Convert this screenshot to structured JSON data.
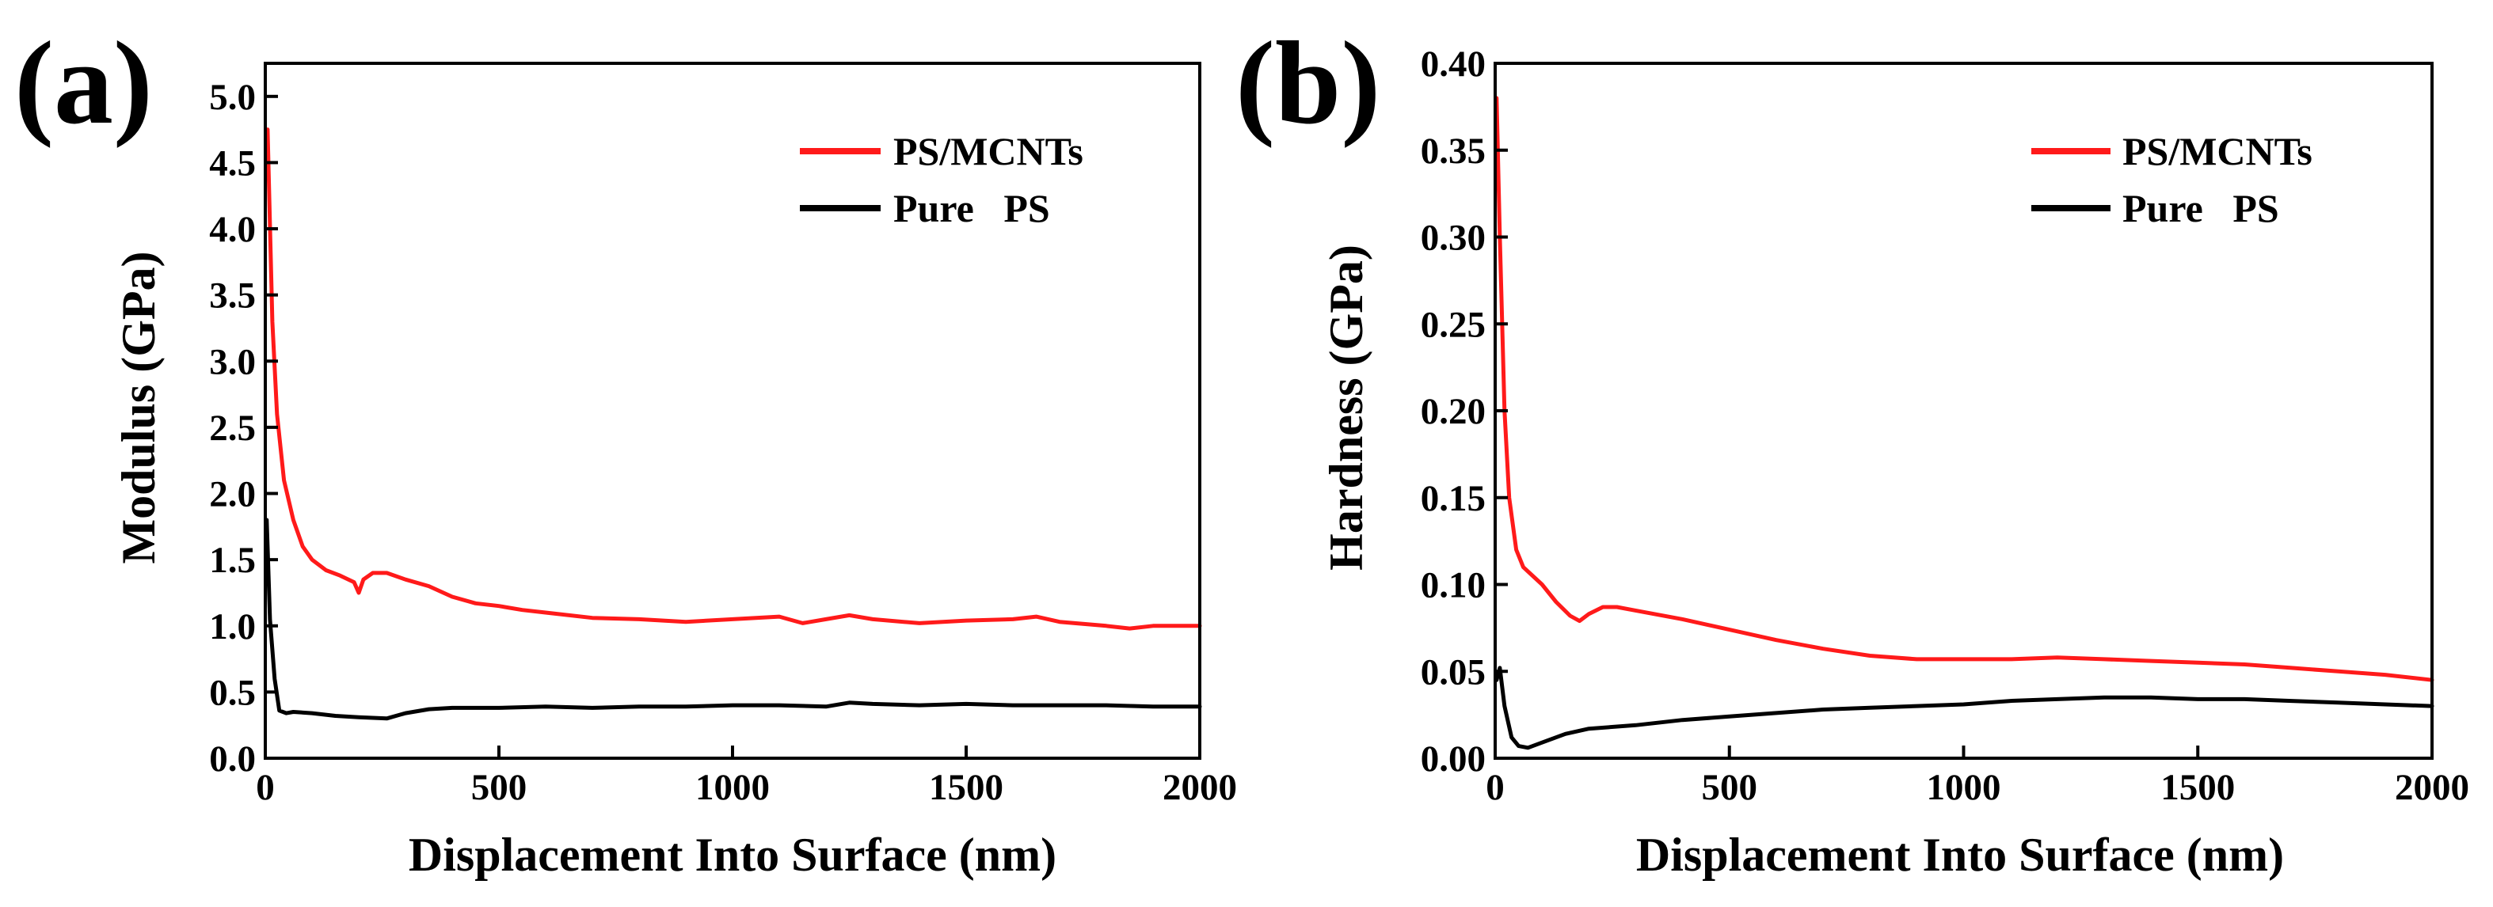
{
  "chart_data": [
    {
      "type": "line",
      "panel_label": "(a)",
      "xlabel": "Displacement Into Surface (nm)",
      "ylabel": "Modulus (GPa)",
      "xlim": [
        0,
        2000
      ],
      "ylim": [
        0,
        5.25
      ],
      "x_ticks": [
        "0",
        "500",
        "1000",
        "1500",
        "2000"
      ],
      "y_ticks": [
        "0.0",
        "0.5",
        "1.0",
        "1.5",
        "2.0",
        "2.5",
        "3.0",
        "3.5",
        "4.0",
        "4.5",
        "5.0"
      ],
      "legend_position": "top-right",
      "series": [
        {
          "name": "PS/MCNTs",
          "color": "#ff1a1a",
          "x": [
            5,
            15,
            25,
            40,
            60,
            80,
            100,
            130,
            160,
            190,
            200,
            210,
            230,
            260,
            300,
            350,
            400,
            450,
            500,
            550,
            600,
            700,
            800,
            900,
            1000,
            1100,
            1150,
            1200,
            1250,
            1300,
            1400,
            1500,
            1600,
            1650,
            1700,
            1800,
            1850,
            1900,
            2000
          ],
          "y": [
            4.75,
            3.3,
            2.6,
            2.1,
            1.8,
            1.6,
            1.5,
            1.42,
            1.38,
            1.33,
            1.25,
            1.35,
            1.4,
            1.4,
            1.35,
            1.3,
            1.22,
            1.17,
            1.15,
            1.12,
            1.1,
            1.06,
            1.05,
            1.03,
            1.05,
            1.07,
            1.02,
            1.05,
            1.08,
            1.05,
            1.02,
            1.04,
            1.05,
            1.07,
            1.03,
            1.0,
            0.98,
            1.0,
            1.0
          ]
        },
        {
          "name": "Pure   PS",
          "color": "#000000",
          "x": [
            3,
            10,
            20,
            30,
            45,
            60,
            100,
            150,
            200,
            260,
            300,
            350,
            400,
            500,
            600,
            700,
            800,
            900,
            1000,
            1100,
            1200,
            1250,
            1300,
            1400,
            1500,
            1600,
            1700,
            1800,
            1900,
            2000
          ],
          "y": [
            1.8,
            1.05,
            0.6,
            0.36,
            0.34,
            0.35,
            0.34,
            0.32,
            0.31,
            0.3,
            0.34,
            0.37,
            0.38,
            0.38,
            0.39,
            0.38,
            0.39,
            0.39,
            0.4,
            0.4,
            0.39,
            0.42,
            0.41,
            0.4,
            0.41,
            0.4,
            0.4,
            0.4,
            0.39,
            0.39
          ]
        }
      ]
    },
    {
      "type": "line",
      "panel_label": "(b)",
      "xlabel": "Displacement Into Surface (nm)",
      "ylabel": "Hardness (GPa)",
      "xlim": [
        0,
        2000
      ],
      "ylim": [
        0,
        0.4
      ],
      "x_ticks": [
        "0",
        "500",
        "1000",
        "1500",
        "2000"
      ],
      "y_ticks": [
        "0.00",
        "0.05",
        "0.10",
        "0.15",
        "0.20",
        "0.25",
        "0.30",
        "0.35",
        "0.40"
      ],
      "legend_position": "top-right",
      "series": [
        {
          "name": "PS/MCNTs",
          "color": "#ff1a1a",
          "x": [
            3,
            10,
            20,
            30,
            45,
            60,
            80,
            100,
            130,
            160,
            180,
            200,
            230,
            260,
            300,
            400,
            500,
            600,
            700,
            800,
            900,
            1000,
            1100,
            1200,
            1300,
            1400,
            1500,
            1600,
            1700,
            1800,
            1900,
            2000
          ],
          "y": [
            0.38,
            0.3,
            0.2,
            0.15,
            0.12,
            0.11,
            0.105,
            0.1,
            0.09,
            0.082,
            0.079,
            0.083,
            0.087,
            0.087,
            0.085,
            0.08,
            0.074,
            0.068,
            0.063,
            0.059,
            0.057,
            0.057,
            0.057,
            0.058,
            0.057,
            0.056,
            0.055,
            0.054,
            0.052,
            0.05,
            0.048,
            0.045
          ]
        },
        {
          "name": "Pure   PS",
          "color": "#000000",
          "x": [
            3,
            10,
            20,
            35,
            50,
            70,
            100,
            150,
            200,
            300,
            400,
            500,
            600,
            700,
            800,
            900,
            1000,
            1100,
            1200,
            1300,
            1400,
            1500,
            1600,
            1700,
            1800,
            1900,
            2000
          ],
          "y": [
            0.045,
            0.052,
            0.03,
            0.012,
            0.007,
            0.006,
            0.009,
            0.014,
            0.017,
            0.019,
            0.022,
            0.024,
            0.026,
            0.028,
            0.029,
            0.03,
            0.031,
            0.033,
            0.034,
            0.035,
            0.035,
            0.034,
            0.034,
            0.033,
            0.032,
            0.031,
            0.03
          ]
        }
      ]
    }
  ]
}
